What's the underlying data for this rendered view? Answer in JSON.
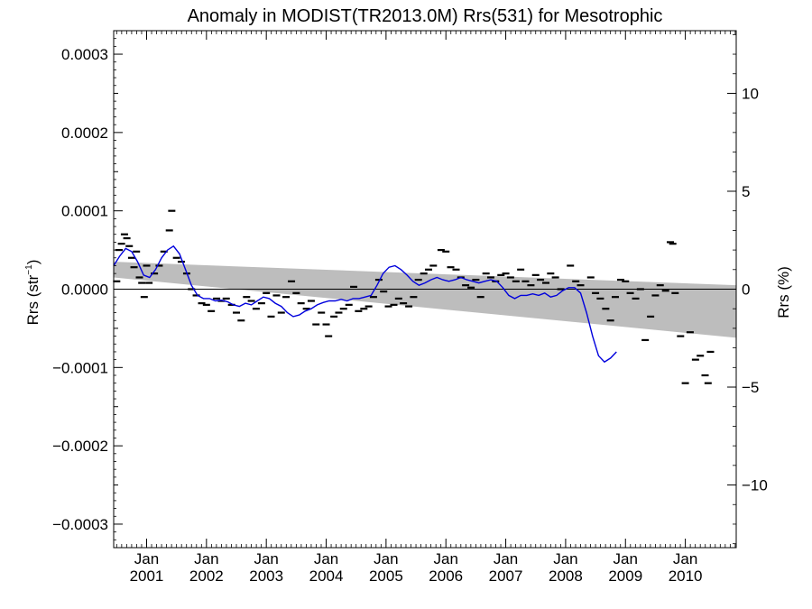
{
  "chart_data": {
    "type": "scatter",
    "title": "Anomaly in MODIST(TR2013.0M) Rrs(531) for Mesotrophic",
    "ylabel_left": "Rrs (str",
    "ylabel_left_sup": "−1",
    "ylabel_left_close": ")",
    "ylabel_right": "Rrs (%)",
    "x_range": [
      2000.45,
      2010.85
    ],
    "y_left_range": [
      -0.00033,
      0.00033
    ],
    "y_right_range": [
      -13.2,
      13.2
    ],
    "y_left_ticks": [
      {
        "v": 0.0003,
        "label": "0.0003"
      },
      {
        "v": 0.0002,
        "label": "0.0002"
      },
      {
        "v": 0.0001,
        "label": "0.0001"
      },
      {
        "v": 0.0,
        "label": "0.0000"
      },
      {
        "v": -0.0001,
        "label": "−0.0001"
      },
      {
        "v": -0.0002,
        "label": "−0.0002"
      },
      {
        "v": -0.0003,
        "label": "−0.0003"
      }
    ],
    "y_right_ticks": [
      {
        "v": 10,
        "label": "10"
      },
      {
        "v": 5,
        "label": "5"
      },
      {
        "v": 0,
        "label": "0"
      },
      {
        "v": -5,
        "label": "−5"
      },
      {
        "v": -10,
        "label": "−10"
      }
    ],
    "x_ticks": [
      {
        "v": 2001,
        "month": "Jan",
        "year": "2001"
      },
      {
        "v": 2002,
        "month": "Jan",
        "year": "2002"
      },
      {
        "v": 2003,
        "month": "Jan",
        "year": "2003"
      },
      {
        "v": 2004,
        "month": "Jan",
        "year": "2004"
      },
      {
        "v": 2005,
        "month": "Jan",
        "year": "2005"
      },
      {
        "v": 2006,
        "month": "Jan",
        "year": "2006"
      },
      {
        "v": 2007,
        "month": "Jan",
        "year": "2007"
      },
      {
        "v": 2008,
        "month": "Jan",
        "year": "2008"
      },
      {
        "v": 2009,
        "month": "Jan",
        "year": "2009"
      },
      {
        "v": 2010,
        "month": "Jan",
        "year": "2010"
      }
    ],
    "band": {
      "x": [
        2000.45,
        2010.85
      ],
      "upper": [
        3.5e-05,
        5e-06
      ],
      "lower": [
        1.5e-05,
        -6.2e-05
      ]
    },
    "zero_line": 0.0,
    "colors": {
      "band": "#bdbdbd",
      "smooth": "#0000dd",
      "points": "#000000",
      "axes": "#000000"
    },
    "points": [
      [
        2000.5,
        1e-05
      ],
      [
        2000.54,
        5e-05
      ],
      [
        2000.58,
        5.8e-05
      ],
      [
        2000.63,
        7e-05
      ],
      [
        2000.67,
        6.5e-05
      ],
      [
        2000.71,
        5.5e-05
      ],
      [
        2000.75,
        4e-05
      ],
      [
        2000.79,
        2.8e-05
      ],
      [
        2000.83,
        4.8e-05
      ],
      [
        2000.88,
        1.5e-05
      ],
      [
        2000.92,
        8e-06
      ],
      [
        2000.96,
        -1e-05
      ],
      [
        2001.0,
        3e-05
      ],
      [
        2001.04,
        8e-06
      ],
      [
        2001.13,
        2e-05
      ],
      [
        2001.21,
        3e-05
      ],
      [
        2001.29,
        4.8e-05
      ],
      [
        2001.38,
        7.5e-05
      ],
      [
        2001.42,
        0.0001
      ],
      [
        2001.5,
        4e-05
      ],
      [
        2001.58,
        3.5e-05
      ],
      [
        2001.67,
        2e-05
      ],
      [
        2001.75,
        0.0
      ],
      [
        2001.83,
        -8e-06
      ],
      [
        2001.92,
        -1.8e-05
      ],
      [
        2002.0,
        -2e-05
      ],
      [
        2002.08,
        -2.8e-05
      ],
      [
        2002.17,
        -1.2e-05
      ],
      [
        2002.25,
        -1.5e-05
      ],
      [
        2002.33,
        -1.2e-05
      ],
      [
        2002.42,
        -2e-05
      ],
      [
        2002.5,
        -3e-05
      ],
      [
        2002.58,
        -4e-05
      ],
      [
        2002.67,
        -1e-05
      ],
      [
        2002.75,
        -1.5e-05
      ],
      [
        2002.83,
        -2.5e-05
      ],
      [
        2002.92,
        -1.8e-05
      ],
      [
        2003.0,
        -5e-06
      ],
      [
        2003.08,
        -3.5e-05
      ],
      [
        2003.17,
        -8e-06
      ],
      [
        2003.25,
        -3e-05
      ],
      [
        2003.33,
        -1e-05
      ],
      [
        2003.42,
        1e-05
      ],
      [
        2003.5,
        -5e-06
      ],
      [
        2003.58,
        -1.8e-05
      ],
      [
        2003.67,
        -2.5e-05
      ],
      [
        2003.75,
        -1.5e-05
      ],
      [
        2003.83,
        -4.5e-05
      ],
      [
        2003.92,
        -3e-05
      ],
      [
        2004.0,
        -4.5e-05
      ],
      [
        2004.04,
        -6e-05
      ],
      [
        2004.13,
        -3.5e-05
      ],
      [
        2004.21,
        -3e-05
      ],
      [
        2004.29,
        -2.5e-05
      ],
      [
        2004.38,
        -2e-05
      ],
      [
        2004.46,
        3e-06
      ],
      [
        2004.54,
        -2.8e-05
      ],
      [
        2004.63,
        -2.5e-05
      ],
      [
        2004.71,
        -2.2e-05
      ],
      [
        2004.79,
        -1e-05
      ],
      [
        2004.88,
        1.2e-05
      ],
      [
        2004.96,
        -3e-06
      ],
      [
        2005.04,
        -2.2e-05
      ],
      [
        2005.13,
        -2e-05
      ],
      [
        2005.21,
        -1.2e-05
      ],
      [
        2005.29,
        -1.8e-05
      ],
      [
        2005.38,
        -2.2e-05
      ],
      [
        2005.46,
        -1e-05
      ],
      [
        2005.54,
        1.2e-05
      ],
      [
        2005.63,
        2e-05
      ],
      [
        2005.71,
        2.5e-05
      ],
      [
        2005.79,
        3e-05
      ],
      [
        2005.92,
        5e-05
      ],
      [
        2006.0,
        4.8e-05
      ],
      [
        2006.08,
        2.8e-05
      ],
      [
        2006.17,
        2.5e-05
      ],
      [
        2006.25,
        1.5e-05
      ],
      [
        2006.33,
        5e-06
      ],
      [
        2006.42,
        2e-06
      ],
      [
        2006.5,
        1.2e-05
      ],
      [
        2006.58,
        -1e-05
      ],
      [
        2006.67,
        2e-05
      ],
      [
        2006.75,
        1.5e-05
      ],
      [
        2006.83,
        1e-05
      ],
      [
        2006.92,
        1.8e-05
      ],
      [
        2007.0,
        2e-05
      ],
      [
        2007.08,
        1.5e-05
      ],
      [
        2007.17,
        1e-05
      ],
      [
        2007.25,
        2.5e-05
      ],
      [
        2007.33,
        1e-05
      ],
      [
        2007.42,
        5e-06
      ],
      [
        2007.5,
        1.8e-05
      ],
      [
        2007.58,
        1.2e-05
      ],
      [
        2007.67,
        8e-06
      ],
      [
        2007.75,
        2e-05
      ],
      [
        2007.83,
        1.5e-05
      ],
      [
        2007.92,
        0.0
      ],
      [
        2008.08,
        3e-05
      ],
      [
        2008.17,
        1e-05
      ],
      [
        2008.25,
        5e-06
      ],
      [
        2008.42,
        1.5e-05
      ],
      [
        2008.5,
        -5e-06
      ],
      [
        2008.58,
        -1.2e-05
      ],
      [
        2008.67,
        -2.5e-05
      ],
      [
        2008.75,
        -4e-05
      ],
      [
        2008.83,
        -1e-05
      ],
      [
        2008.92,
        1.2e-05
      ],
      [
        2009.0,
        1e-05
      ],
      [
        2009.08,
        -5e-06
      ],
      [
        2009.17,
        -1.2e-05
      ],
      [
        2009.25,
        0.0
      ],
      [
        2009.33,
        -6.5e-05
      ],
      [
        2009.42,
        -3.5e-05
      ],
      [
        2009.5,
        -8e-06
      ],
      [
        2009.58,
        5e-06
      ],
      [
        2009.67,
        -2e-06
      ],
      [
        2009.75,
        6e-05
      ],
      [
        2009.79,
        5.8e-05
      ],
      [
        2009.83,
        -5e-06
      ],
      [
        2009.92,
        -6e-05
      ],
      [
        2010.0,
        -0.00012
      ],
      [
        2010.08,
        -5.5e-05
      ],
      [
        2010.17,
        -9e-05
      ],
      [
        2010.25,
        -8.5e-05
      ],
      [
        2010.33,
        -0.00011
      ],
      [
        2010.38,
        -0.00012
      ],
      [
        2010.42,
        -8e-05
      ]
    ],
    "smooth": [
      [
        2000.45,
        3e-05
      ],
      [
        2000.55,
        4.2e-05
      ],
      [
        2000.65,
        5.2e-05
      ],
      [
        2000.75,
        4.8e-05
      ],
      [
        2000.85,
        3.5e-05
      ],
      [
        2000.95,
        1.8e-05
      ],
      [
        2001.05,
        1.5e-05
      ],
      [
        2001.15,
        2.5e-05
      ],
      [
        2001.25,
        4e-05
      ],
      [
        2001.35,
        5e-05
      ],
      [
        2001.45,
        5.5e-05
      ],
      [
        2001.55,
        4.5e-05
      ],
      [
        2001.65,
        2.5e-05
      ],
      [
        2001.75,
        5e-06
      ],
      [
        2001.85,
        -8e-06
      ],
      [
        2001.95,
        -1.2e-05
      ],
      [
        2002.05,
        -1.2e-05
      ],
      [
        2002.15,
        -1.5e-05
      ],
      [
        2002.25,
        -1.4e-05
      ],
      [
        2002.35,
        -1.6e-05
      ],
      [
        2002.45,
        -2e-05
      ],
      [
        2002.55,
        -2.2e-05
      ],
      [
        2002.65,
        -1.8e-05
      ],
      [
        2002.75,
        -2e-05
      ],
      [
        2002.85,
        -1.5e-05
      ],
      [
        2002.95,
        -1e-05
      ],
      [
        2003.05,
        -1.2e-05
      ],
      [
        2003.15,
        -1.8e-05
      ],
      [
        2003.25,
        -2.2e-05
      ],
      [
        2003.35,
        -3e-05
      ],
      [
        2003.45,
        -3.5e-05
      ],
      [
        2003.55,
        -3.3e-05
      ],
      [
        2003.65,
        -2.8e-05
      ],
      [
        2003.75,
        -2.5e-05
      ],
      [
        2003.85,
        -2e-05
      ],
      [
        2003.95,
        -1.7e-05
      ],
      [
        2004.05,
        -1.5e-05
      ],
      [
        2004.15,
        -1.5e-05
      ],
      [
        2004.25,
        -1.3e-05
      ],
      [
        2004.35,
        -1.5e-05
      ],
      [
        2004.45,
        -1.2e-05
      ],
      [
        2004.55,
        -1.2e-05
      ],
      [
        2004.65,
        -1e-05
      ],
      [
        2004.75,
        -8e-06
      ],
      [
        2004.85,
        5e-06
      ],
      [
        2004.95,
        2e-05
      ],
      [
        2005.05,
        2.8e-05
      ],
      [
        2005.15,
        3e-05
      ],
      [
        2005.25,
        2.5e-05
      ],
      [
        2005.35,
        1.8e-05
      ],
      [
        2005.45,
        1e-05
      ],
      [
        2005.55,
        5e-06
      ],
      [
        2005.65,
        8e-06
      ],
      [
        2005.75,
        1.2e-05
      ],
      [
        2005.85,
        1.5e-05
      ],
      [
        2005.95,
        1.2e-05
      ],
      [
        2006.05,
        1e-05
      ],
      [
        2006.15,
        1.2e-05
      ],
      [
        2006.25,
        1.5e-05
      ],
      [
        2006.35,
        1.2e-05
      ],
      [
        2006.45,
        1e-05
      ],
      [
        2006.55,
        8e-06
      ],
      [
        2006.65,
        1e-05
      ],
      [
        2006.75,
        1.2e-05
      ],
      [
        2006.85,
        1e-05
      ],
      [
        2006.95,
        2e-06
      ],
      [
        2007.05,
        -8e-06
      ],
      [
        2007.15,
        -1.2e-05
      ],
      [
        2007.25,
        -8e-06
      ],
      [
        2007.35,
        -8e-06
      ],
      [
        2007.45,
        -6e-06
      ],
      [
        2007.55,
        -8e-06
      ],
      [
        2007.65,
        -5e-06
      ],
      [
        2007.75,
        -1e-05
      ],
      [
        2007.85,
        -8e-06
      ],
      [
        2007.95,
        -2e-06
      ],
      [
        2008.05,
        2e-06
      ],
      [
        2008.15,
        2e-06
      ],
      [
        2008.25,
        -5e-06
      ],
      [
        2008.35,
        -3e-05
      ],
      [
        2008.45,
        -6e-05
      ],
      [
        2008.55,
        -8.5e-05
      ],
      [
        2008.65,
        -9.3e-05
      ],
      [
        2008.75,
        -8.8e-05
      ],
      [
        2008.85,
        -8e-05
      ]
    ]
  }
}
